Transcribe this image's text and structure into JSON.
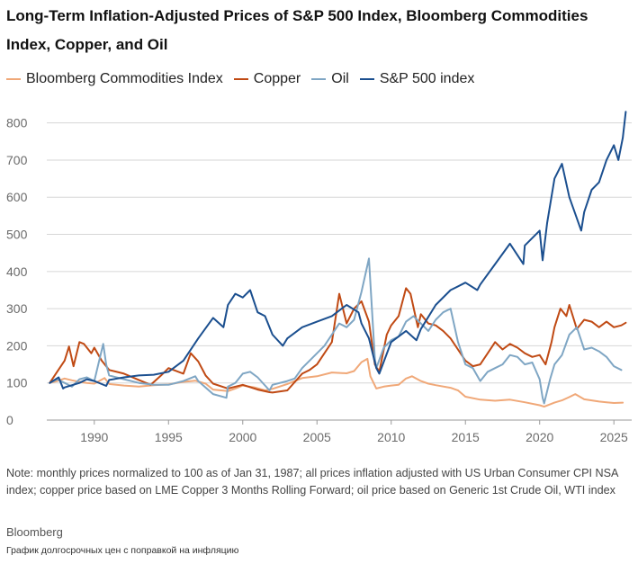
{
  "chart_data": {
    "type": "line",
    "title": "Long-Term Inflation-Adjusted Prices of S&P 500 Index, Bloomberg Commodities Index, Copper, and Oil",
    "xlabel": "",
    "ylabel": "",
    "xlim": [
      1986.8,
      2026.2
    ],
    "ylim": [
      0,
      850
    ],
    "x_ticks": [
      1990,
      1995,
      2000,
      2005,
      2010,
      2015,
      2020,
      2025
    ],
    "y_ticks": [
      0,
      100,
      200,
      300,
      400,
      500,
      600,
      700,
      800
    ],
    "grid": true,
    "legend_position": "top-left",
    "series": [
      {
        "name": "Bloomberg Commodities Index",
        "color": "#f0a878",
        "x": [
          1987,
          1987.5,
          1988,
          1988.5,
          1989,
          1989.5,
          1990,
          1990.7,
          1991,
          1992,
          1993,
          1994,
          1995,
          1996,
          1996.8,
          1997.5,
          1998,
          1999,
          1999.5,
          2000,
          2000.8,
          2001.5,
          2002,
          2003,
          2004,
          2005,
          2006,
          2007,
          2007.5,
          2008,
          2008.4,
          2008.6,
          2009,
          2009.5,
          2010,
          2010.5,
          2011,
          2011.4,
          2012,
          2012.5,
          2013,
          2014,
          2014.5,
          2015,
          2016,
          2017,
          2018,
          2019,
          2020,
          2020.3,
          2021,
          2021.5,
          2022,
          2022.4,
          2023,
          2023.5,
          2024,
          2024.5,
          2025,
          2025.6
        ],
        "values": [
          100,
          105,
          112,
          107,
          103,
          100,
          98,
          113,
          97,
          93,
          90,
          94,
          96,
          103,
          106,
          98,
          82,
          78,
          85,
          93,
          88,
          80,
          84,
          97,
          113,
          118,
          128,
          126,
          132,
          156,
          165,
          118,
          85,
          90,
          93,
          95,
          112,
          118,
          105,
          98,
          94,
          87,
          80,
          63,
          55,
          52,
          55,
          48,
          40,
          36,
          47,
          53,
          62,
          70,
          56,
          53,
          50,
          48,
          46,
          47
        ]
      },
      {
        "name": "Copper",
        "color": "#c04a14",
        "x": [
          1987,
          1987.5,
          1988,
          1988.3,
          1988.6,
          1989,
          1989.3,
          1989.8,
          1990,
          1990.5,
          1991,
          1992,
          1993,
          1993.8,
          1994.5,
          1995,
          1996,
          1996.5,
          1997,
          1997.5,
          1998,
          1999,
          2000,
          2001,
          2001.8,
          2002,
          2003,
          2004,
          2004.5,
          2005,
          2006,
          2006.5,
          2007,
          2007.5,
          2008,
          2008.5,
          2008.9,
          2009.2,
          2009.7,
          2010,
          2010.5,
          2011,
          2011.3,
          2011.8,
          2012,
          2012.5,
          2013,
          2013.5,
          2014,
          2015,
          2015.5,
          2016,
          2016.5,
          2017,
          2017.5,
          2018,
          2018.5,
          2019,
          2019.5,
          2020,
          2020.4,
          2020.8,
          2021,
          2021.4,
          2021.8,
          2022,
          2022.5,
          2023,
          2023.5,
          2024,
          2024.5,
          2025,
          2025.5,
          2025.8
        ],
        "values": [
          100,
          130,
          160,
          198,
          145,
          210,
          205,
          180,
          195,
          160,
          135,
          125,
          108,
          95,
          120,
          140,
          125,
          180,
          158,
          120,
          98,
          85,
          95,
          82,
          75,
          74,
          80,
          125,
          135,
          150,
          210,
          340,
          260,
          300,
          320,
          265,
          150,
          130,
          230,
          255,
          280,
          355,
          340,
          250,
          285,
          260,
          255,
          240,
          220,
          160,
          145,
          150,
          180,
          210,
          190,
          205,
          195,
          180,
          170,
          175,
          150,
          210,
          250,
          300,
          280,
          310,
          245,
          270,
          265,
          250,
          265,
          250,
          255,
          262
        ]
      },
      {
        "name": "Oil",
        "color": "#7fa6c4",
        "x": [
          1987,
          1987.5,
          1988,
          1988.5,
          1989,
          1989.5,
          1990,
          1990.6,
          1990.8,
          1991,
          1992,
          1993,
          1994,
          1995,
          1996,
          1996.8,
          1997,
          1998,
          1998.9,
          1999,
          1999.5,
          2000,
          2000.5,
          2001,
          2001.8,
          2002,
          2003,
          2003.5,
          2004,
          2005,
          2005.5,
          2006,
          2006.5,
          2007,
          2007.5,
          2008,
          2008.5,
          2008.9,
          2009,
          2009.5,
          2010,
          2010.5,
          2011,
          2011.5,
          2012,
          2012.5,
          2013,
          2013.5,
          2014,
          2014.5,
          2015,
          2015.5,
          2016,
          2016.5,
          2017,
          2017.5,
          2018,
          2018.5,
          2019,
          2019.5,
          2020,
          2020.2,
          2020.3,
          2020.7,
          2021,
          2021.5,
          2022,
          2022.5,
          2023,
          2023.5,
          2024,
          2024.5,
          2025,
          2025.5
        ],
        "values": [
          100,
          110,
          100,
          90,
          110,
          115,
          105,
          205,
          150,
          120,
          110,
          100,
          95,
          95,
          105,
          118,
          105,
          70,
          60,
          90,
          100,
          125,
          130,
          115,
          80,
          95,
          105,
          112,
          140,
          180,
          200,
          230,
          260,
          250,
          270,
          345,
          435,
          165,
          140,
          195,
          215,
          225,
          265,
          280,
          260,
          240,
          270,
          290,
          300,
          210,
          150,
          140,
          105,
          130,
          140,
          150,
          175,
          170,
          150,
          155,
          110,
          60,
          45,
          110,
          150,
          175,
          230,
          250,
          190,
          195,
          185,
          170,
          145,
          135
        ]
      },
      {
        "name": "S&P 500 index",
        "color": "#1b4f8f",
        "x": [
          1987,
          1987.6,
          1987.9,
          1988,
          1989,
          1989.5,
          1990,
          1990.8,
          1991,
          1992,
          1993,
          1994,
          1995,
          1996,
          1997,
          1998,
          1998.7,
          1999,
          1999.5,
          2000,
          2000.5,
          2001,
          2001.5,
          2002,
          2002.7,
          2003,
          2004,
          2005,
          2006,
          2007,
          2007.8,
          2008,
          2008.5,
          2009,
          2009.2,
          2010,
          2011,
          2011.7,
          2012,
          2013,
          2014,
          2015,
          2015.8,
          2016,
          2017,
          2018,
          2018.9,
          2019,
          2020,
          2020.2,
          2020.5,
          2021,
          2021.5,
          2022,
          2022.8,
          2023,
          2023.5,
          2024,
          2024.5,
          2025,
          2025.3,
          2025.6,
          2025.8
        ],
        "values": [
          100,
          115,
          85,
          88,
          100,
          110,
          105,
          92,
          108,
          115,
          120,
          122,
          130,
          160,
          220,
          275,
          250,
          310,
          340,
          330,
          350,
          290,
          280,
          230,
          200,
          220,
          250,
          265,
          280,
          310,
          290,
          260,
          220,
          140,
          125,
          210,
          240,
          215,
          245,
          310,
          350,
          370,
          350,
          365,
          420,
          475,
          420,
          470,
          510,
          430,
          530,
          650,
          690,
          600,
          510,
          560,
          620,
          640,
          700,
          740,
          700,
          760,
          830
        ]
      }
    ]
  },
  "header": {
    "title": "Long-Term Inflation-Adjusted Prices of S&P 500 Index, Bloomberg Commodities Index, Copper, and Oil"
  },
  "legend": [
    {
      "label": "Bloomberg Commodities Index",
      "color": "#f0a878"
    },
    {
      "label": "Copper",
      "color": "#c04a14"
    },
    {
      "label": "Oil",
      "color": "#7fa6c4"
    },
    {
      "label": "S&P 500 index",
      "color": "#1b4f8f"
    }
  ],
  "footer": {
    "note": "Note: monthly prices normalized to 100 as of Jan 31, 1987; all prices inflation adjusted with US Urban Consumer CPI NSA index; copper price based on LME Copper 3 Months Rolling Forward; oil price based on Generic 1st Crude Oil, WTI index",
    "source": "Bloomberg",
    "caption": "График долгосрочных цен с поправкой на инфляцию"
  }
}
